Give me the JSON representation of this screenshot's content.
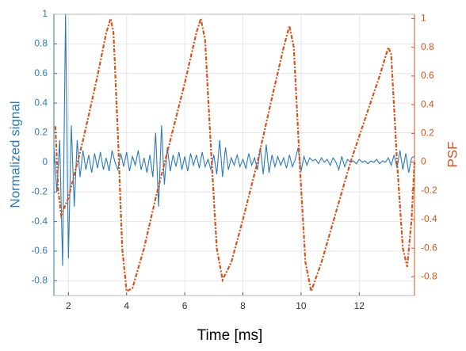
{
  "chart_data": {
    "type": "line",
    "xlabel": "Time [ms]",
    "ylabel": "Normalized signal",
    "y2label": "PSF",
    "xlim": [
      1.5,
      13.9
    ],
    "xticks": [
      2,
      4,
      6,
      8,
      10,
      12
    ],
    "ylim": [
      -0.9,
      1
    ],
    "yticks": [
      -0.8,
      -0.6,
      -0.4,
      -0.2,
      0,
      0.2,
      0.4,
      0.6,
      0.8,
      1
    ],
    "y2lim": [
      -0.93,
      1.03
    ],
    "y2ticks": [
      -0.8,
      -0.6,
      -0.4,
      -0.2,
      0,
      0.2,
      0.4,
      0.6,
      0.8,
      1
    ],
    "grid": true,
    "series": [
      {
        "color": "#2b7bb9",
        "axis": "y",
        "x": [
          1.5,
          1.6,
          1.7,
          1.8,
          1.9,
          2.0,
          2.1,
          2.2,
          2.3,
          2.4,
          2.5,
          2.6,
          2.7,
          2.8,
          2.9,
          3.0,
          3.1,
          3.2,
          3.3,
          3.4,
          3.5,
          3.6,
          3.7,
          3.8,
          3.9,
          4.0,
          4.1,
          4.2,
          4.3,
          4.4,
          4.5,
          4.6,
          4.7,
          4.8,
          4.9,
          5.0,
          5.1,
          5.2,
          5.3,
          5.4,
          5.5,
          5.6,
          5.7,
          5.8,
          5.9,
          6.0,
          6.1,
          6.2,
          6.3,
          6.4,
          6.5,
          6.6,
          6.7,
          6.8,
          6.9,
          7.0,
          7.1,
          7.2,
          7.3,
          7.4,
          7.5,
          7.6,
          7.7,
          7.8,
          7.9,
          8.0,
          8.1,
          8.2,
          8.3,
          8.4,
          8.5,
          8.6,
          8.7,
          8.8,
          8.9,
          9.0,
          9.1,
          9.2,
          9.3,
          9.4,
          9.5,
          9.6,
          9.7,
          9.8,
          9.9,
          10.0,
          10.1,
          10.2,
          10.3,
          10.4,
          10.5,
          10.6,
          10.7,
          10.8,
          10.9,
          11.0,
          11.1,
          11.2,
          11.3,
          11.4,
          11.5,
          11.6,
          11.7,
          11.8,
          11.9,
          12.0,
          12.1,
          12.2,
          12.3,
          12.4,
          12.5,
          12.6,
          12.7,
          12.8,
          12.9,
          13.0,
          13.1,
          13.2,
          13.3,
          13.4,
          13.5,
          13.6,
          13.7,
          13.8,
          13.9
        ],
        "values": [
          0.1,
          -0.2,
          0.15,
          -0.7,
          1.0,
          -0.65,
          0.25,
          -0.3,
          0.15,
          -0.1,
          0.08,
          -0.05,
          0.05,
          -0.07,
          0.06,
          -0.04,
          0.07,
          -0.05,
          0.03,
          -0.06,
          0.08,
          0.0,
          -0.05,
          0.06,
          -0.03,
          0.07,
          -0.06,
          0.04,
          -0.02,
          0.08,
          -0.05,
          0.03,
          -0.07,
          0.05,
          -0.1,
          0.2,
          -0.3,
          0.25,
          -0.15,
          0.1,
          -0.06,
          0.05,
          -0.03,
          0.07,
          -0.05,
          0.04,
          -0.06,
          0.06,
          -0.02,
          0.05,
          -0.04,
          0.07,
          -0.03,
          0.02,
          -0.05,
          0.05,
          -0.08,
          0.15,
          -0.1,
          0.1,
          -0.05,
          0.03,
          -0.02,
          0.05,
          -0.03,
          0.02,
          -0.04,
          0.06,
          -0.02,
          0.03,
          -0.05,
          0.1,
          -0.08,
          0.12,
          -0.07,
          0.05,
          -0.03,
          0.04,
          -0.02,
          0.03,
          -0.04,
          0.05,
          -0.03,
          0.02,
          0.1,
          -0.06,
          0.04,
          -0.02,
          0.03,
          0.01,
          0.02,
          -0.01,
          0.03,
          0.0,
          0.02,
          -0.02,
          0.03,
          0.0,
          -0.05,
          0.04,
          -0.03,
          0.02,
          0.0,
          0.01,
          -0.01,
          0.02,
          0.0,
          0.01,
          -0.01,
          0.01,
          0.0,
          0.02,
          -0.01,
          0.01,
          0.0,
          0.03,
          -0.02,
          0.05,
          -0.04,
          0.08,
          -0.05,
          0.06,
          -0.07,
          0.03,
          0.04
        ]
      },
      {
        "color": "#d95319",
        "axis": "y2",
        "dashed": true,
        "x": [
          1.55,
          1.65,
          1.75,
          2.0,
          2.5,
          3.0,
          3.3,
          3.45,
          3.55,
          3.7,
          3.85,
          4.0,
          4.2,
          4.6,
          5.0,
          5.5,
          6.0,
          6.4,
          6.55,
          6.7,
          6.9,
          7.1,
          7.3,
          7.6,
          8.0,
          8.5,
          9.0,
          9.4,
          9.6,
          9.75,
          9.95,
          10.15,
          10.35,
          10.7,
          11.2,
          11.7,
          12.2,
          12.7,
          13.0,
          13.1,
          13.3,
          13.5,
          13.65,
          13.8,
          13.9
        ],
        "values": [
          0.25,
          -0.2,
          -0.37,
          -0.25,
          0.15,
          0.6,
          0.9,
          1.0,
          0.9,
          0.2,
          -0.6,
          -0.9,
          -0.88,
          -0.6,
          -0.25,
          0.15,
          0.55,
          0.9,
          1.0,
          0.85,
          0.1,
          -0.6,
          -0.82,
          -0.7,
          -0.4,
          0.0,
          0.45,
          0.8,
          0.95,
          0.8,
          0.0,
          -0.7,
          -0.9,
          -0.7,
          -0.35,
          0.0,
          0.3,
          0.6,
          0.8,
          0.75,
          0.0,
          -0.6,
          -0.73,
          -0.4,
          0.0
        ]
      }
    ]
  }
}
